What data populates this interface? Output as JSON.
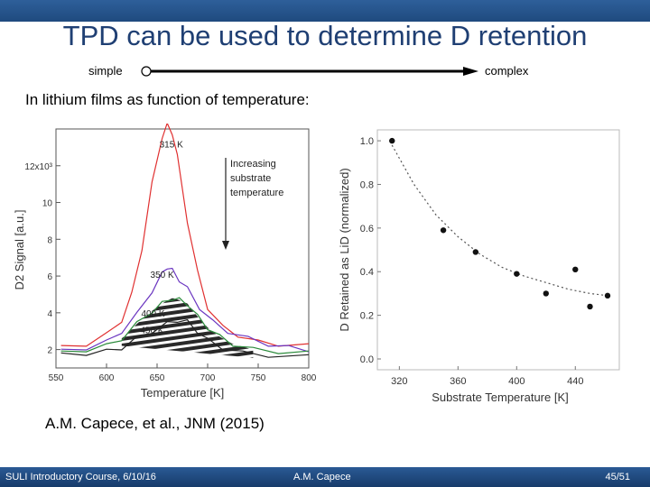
{
  "slide": {
    "title": "TPD can be used to determine D retention",
    "scale_left": "simple",
    "scale_right": "complex",
    "subtitle": "In lithium films as function of temperature:",
    "citation": "A.M. Capece, et al., JNM (2015)"
  },
  "footer": {
    "course": "SULI Introductory Course, 6/10/16",
    "author": "A.M. Capece",
    "page": "45/51"
  },
  "colors": {
    "title": "#1f3f73",
    "bar": "#1f4a7e"
  },
  "chart_data": [
    {
      "type": "line",
      "xlabel": "Temperature [K]",
      "ylabel": "D2 Signal [a.u.]",
      "xlim": [
        550,
        800
      ],
      "ylim": [
        1,
        14
      ],
      "x_ticks": [
        550,
        600,
        650,
        700,
        750,
        800
      ],
      "x_tick_labels": [
        "550",
        "600",
        "650",
        "700",
        "750",
        "800"
      ],
      "y_ticks": [
        2,
        4,
        6,
        8,
        10,
        12
      ],
      "y_tick_labels": [
        "2",
        "4",
        "6",
        "8",
        "10",
        "12x10³"
      ],
      "annotation": "Increasing substrate temperature",
      "series": [
        {
          "name": "315 K",
          "color": "#e03030",
          "x": [
            555,
            580,
            600,
            615,
            625,
            635,
            645,
            655,
            660,
            665,
            670,
            680,
            690,
            700,
            715,
            730,
            750,
            770,
            800
          ],
          "y": [
            2.1,
            2.3,
            2.8,
            3.6,
            5.0,
            7.5,
            11.0,
            13.6,
            14.2,
            13.8,
            12.5,
            9.0,
            6.2,
            4.3,
            3.2,
            2.8,
            2.4,
            2.3,
            2.2
          ]
        },
        {
          "name": "350 K",
          "color": "#6a35c0",
          "x": [
            555,
            580,
            600,
            615,
            630,
            645,
            655,
            660,
            665,
            672,
            680,
            692,
            705,
            720,
            740,
            760,
            780,
            800
          ],
          "y": [
            1.9,
            2.1,
            2.4,
            3.0,
            3.9,
            5.2,
            6.1,
            6.5,
            6.3,
            5.8,
            5.3,
            4.3,
            3.5,
            3.0,
            2.6,
            2.3,
            2.1,
            2.0
          ]
        },
        {
          "name": "400 K",
          "color": "#2a8a3a",
          "x": [
            555,
            580,
            600,
            615,
            630,
            645,
            655,
            665,
            672,
            680,
            690,
            700,
            712,
            725,
            745,
            770,
            800
          ],
          "y": [
            1.8,
            2.0,
            2.2,
            2.6,
            3.4,
            4.1,
            4.5,
            4.8,
            4.7,
            4.5,
            3.8,
            3.2,
            2.7,
            2.3,
            2.0,
            1.9,
            1.8
          ]
        },
        {
          "name": "450 K",
          "color": "#222222",
          "x": [
            555,
            580,
            600,
            615,
            630,
            645,
            660,
            670,
            680,
            690,
            700,
            715,
            735,
            760,
            800
          ],
          "y": [
            1.7,
            1.8,
            1.9,
            2.1,
            2.6,
            3.0,
            3.4,
            3.6,
            3.5,
            3.0,
            2.5,
            2.1,
            1.8,
            1.7,
            1.6
          ]
        }
      ]
    },
    {
      "type": "scatter",
      "xlabel": "Substrate Temperature [K]",
      "ylabel": "D Retained as LiD (normalized)",
      "xlim": [
        305,
        470
      ],
      "ylim": [
        0,
        1.05
      ],
      "x_ticks": [
        320,
        360,
        400,
        440
      ],
      "y_ticks": [
        0.0,
        0.2,
        0.4,
        0.6,
        0.8,
        1.0
      ],
      "y_tick_labels": [
        "0.0",
        "0.2",
        "0.4",
        "0.6",
        "0.8",
        "1.0"
      ],
      "points": {
        "x": [
          315,
          350,
          372,
          400,
          420,
          440,
          450,
          462
        ],
        "y": [
          1.0,
          0.59,
          0.49,
          0.39,
          0.3,
          0.41,
          0.24,
          0.29
        ]
      },
      "fit": {
        "style": "dotted",
        "x": [
          315,
          330,
          345,
          360,
          375,
          390,
          405,
          420,
          435,
          450,
          462
        ],
        "y": [
          0.98,
          0.8,
          0.66,
          0.56,
          0.48,
          0.42,
          0.38,
          0.35,
          0.32,
          0.3,
          0.29
        ]
      }
    }
  ]
}
